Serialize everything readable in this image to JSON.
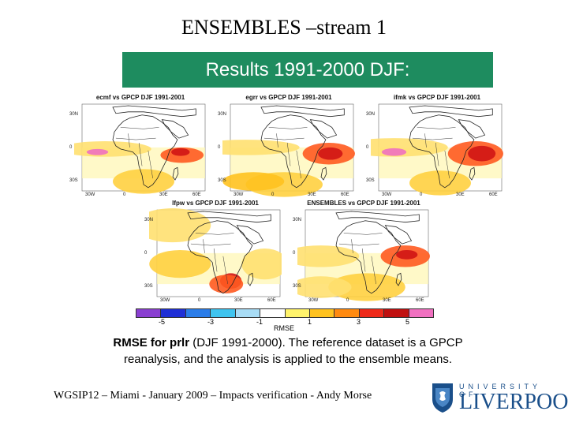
{
  "slide": {
    "title": "ENSEMBLES –stream 1",
    "banner": "Results 1991-2000 DJF:",
    "banner_color": "#1e8c5f",
    "caption_bold": "RMSE for prlr",
    "caption_rest": " (DJF 1991-2000). The reference dataset is a GPCP reanalysis, and the analysis is applied to the ensemble means.",
    "footer": "WGSIP12 – Miami - January 2009 – Impacts verification - Andy Morse",
    "logo_top": "UNIVERSITY OF",
    "logo_bottom": "LIVERPOOL"
  },
  "maps": [
    {
      "title": "ecmf vs GPCP DJF 1991-2001"
    },
    {
      "title": "egrr vs GPCP DJF 1991-2001"
    },
    {
      "title": "ifmk vs GPCP DJF 1991-2001"
    },
    {
      "title": "lfpw vs GPCP DJF 1991-2001"
    },
    {
      "title": "ENSEMBLES vs GPCP DJF 1991-2001"
    }
  ],
  "axes": {
    "lat_labels": [
      "30N",
      "0",
      "30S"
    ],
    "lon_labels": [
      "30W",
      "0",
      "30E",
      "60E"
    ]
  },
  "colorbar": {
    "label": "RMSE",
    "ticks": [
      "-5",
      "-3",
      "-1",
      "1",
      "3",
      "5"
    ],
    "colors": [
      "#8a3fd1",
      "#1f2fd6",
      "#2b7de9",
      "#3fc4ef",
      "#a8dcf5",
      "#ffffff",
      "#fff36b",
      "#ffc21f",
      "#ff8a10",
      "#ef2a1a",
      "#c01010",
      "#f070c0"
    ]
  }
}
